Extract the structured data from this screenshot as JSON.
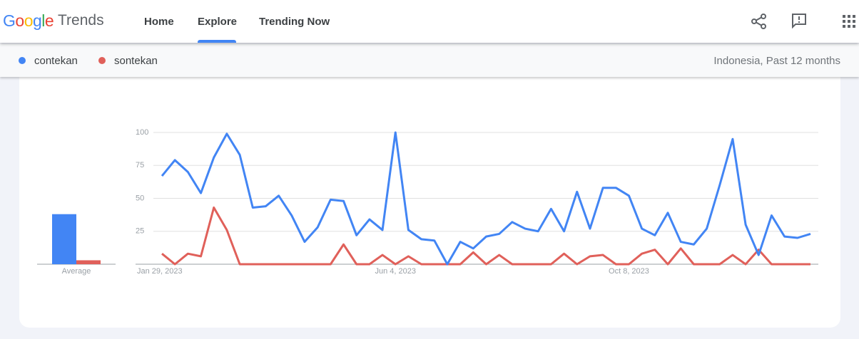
{
  "header": {
    "logo": "Google",
    "logo_colors": [
      "#4285f4",
      "#ea4335",
      "#fbbc05",
      "#4285f4",
      "#34a853",
      "#ea4335"
    ],
    "product": "Trends",
    "nav": [
      "Home",
      "Explore",
      "Trending Now"
    ],
    "filter": "Indonesia, Past 12 months"
  },
  "chart_data": {
    "type": "line",
    "categories": [
      "Jan 29, 2023",
      null,
      null,
      null,
      null,
      null,
      null,
      null,
      null,
      null,
      null,
      null,
      null,
      null,
      null,
      null,
      null,
      null,
      "Jun 4, 2023",
      null,
      null,
      null,
      null,
      null,
      null,
      null,
      null,
      null,
      null,
      null,
      null,
      null,
      null,
      null,
      null,
      null,
      "Oct 8, 2023",
      null,
      null,
      null,
      null,
      null,
      null,
      null,
      null,
      null,
      null,
      null,
      null,
      null,
      null
    ],
    "series": [
      {
        "name": "contekan",
        "color": "#4285f4",
        "average": 38,
        "values": [
          67,
          79,
          70,
          54,
          81,
          99,
          83,
          43,
          44,
          52,
          37,
          17,
          28,
          49,
          48,
          22,
          34,
          26,
          100,
          26,
          19,
          18,
          0,
          17,
          12,
          21,
          23,
          32,
          27,
          25,
          42,
          25,
          55,
          27,
          58,
          58,
          52,
          27,
          22,
          39,
          17,
          15,
          27,
          60,
          95,
          30,
          7,
          37,
          21,
          20,
          23
        ]
      },
      {
        "name": "sontekan",
        "color": "#e0605a",
        "average": 3,
        "values": [
          8,
          0,
          8,
          6,
          43,
          26,
          0,
          0,
          0,
          0,
          0,
          0,
          0,
          0,
          15,
          0,
          0,
          7,
          0,
          6,
          0,
          0,
          0,
          0,
          9,
          0,
          7,
          0,
          0,
          0,
          0,
          8,
          0,
          6,
          7,
          0,
          0,
          8,
          11,
          0,
          12,
          0,
          0,
          0,
          7,
          0,
          11,
          0,
          0,
          0,
          0
        ]
      }
    ],
    "average_label": "Average",
    "ylim": [
      0,
      100
    ],
    "yticks": [
      25,
      50,
      75,
      100
    ],
    "grid": true
  }
}
